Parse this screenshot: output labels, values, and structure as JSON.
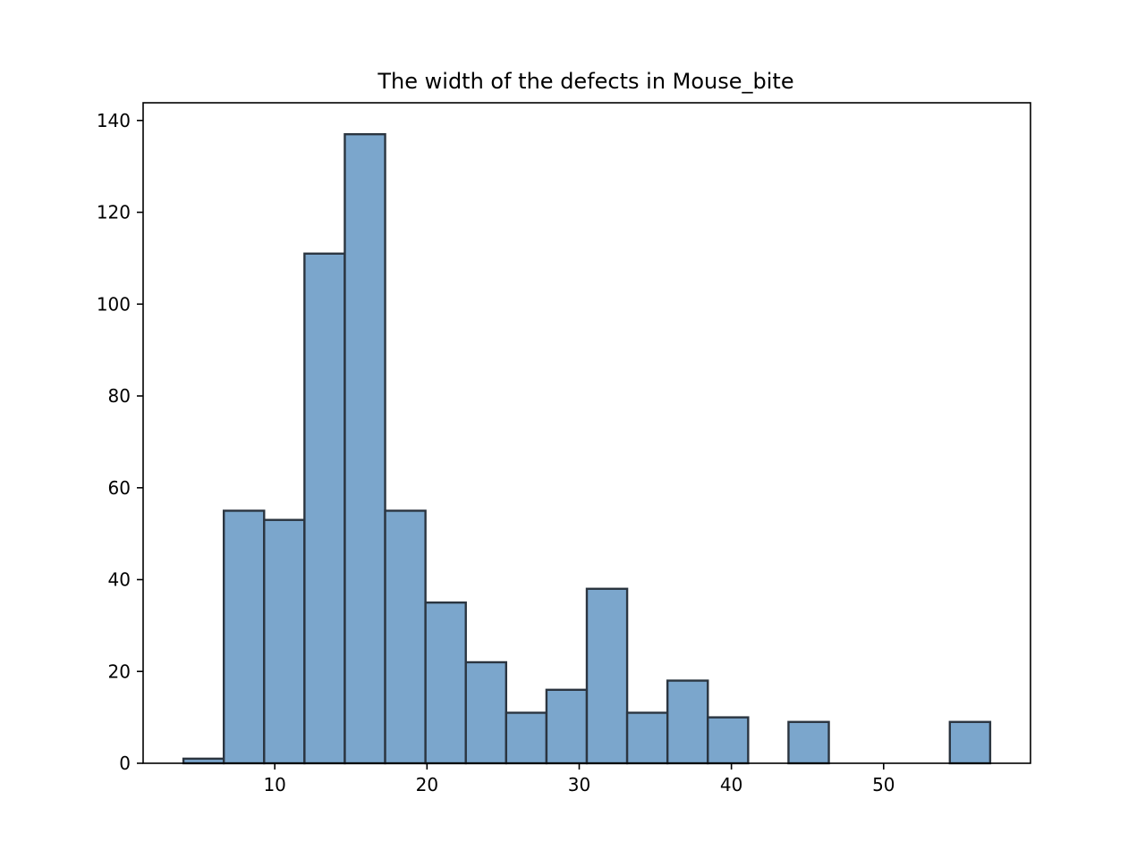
{
  "chart_data": {
    "type": "bar",
    "subtype": "histogram",
    "title": "The width of the defects in Mouse_bite",
    "xlabel": "",
    "ylabel": "",
    "bin_edges": [
      4,
      6.65,
      9.3,
      11.95,
      14.6,
      17.25,
      19.9,
      22.55,
      25.2,
      27.85,
      30.5,
      33.15,
      35.8,
      38.45,
      41.1,
      43.75,
      46.4,
      49.05,
      51.7,
      54.35,
      57
    ],
    "values": [
      1,
      55,
      53,
      111,
      137,
      55,
      35,
      22,
      11,
      16,
      38,
      11,
      18,
      10,
      0,
      9,
      0,
      0,
      0,
      9
    ],
    "xlim": [
      1.35,
      59.65
    ],
    "ylim": [
      0,
      143.85
    ],
    "x_ticks": [
      10,
      20,
      30,
      40,
      50
    ],
    "y_ticks": [
      0,
      20,
      40,
      60,
      80,
      100,
      120,
      140
    ],
    "grid": false,
    "colors": {
      "bar_fill": "#7ba6cc",
      "bar_edge": "#2b3540",
      "axes": "#000000"
    }
  }
}
